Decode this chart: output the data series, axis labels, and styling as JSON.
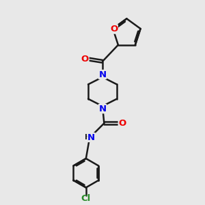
{
  "bg_color": "#e8e8e8",
  "bond_color": "#1a1a1a",
  "N_color": "#0000ee",
  "O_color": "#ee0000",
  "Cl_color": "#2a8c2a",
  "line_width": 1.8,
  "figsize": [
    3.0,
    3.0
  ],
  "dpi": 100,
  "xlim": [
    0,
    10
  ],
  "ylim": [
    0,
    10
  ]
}
